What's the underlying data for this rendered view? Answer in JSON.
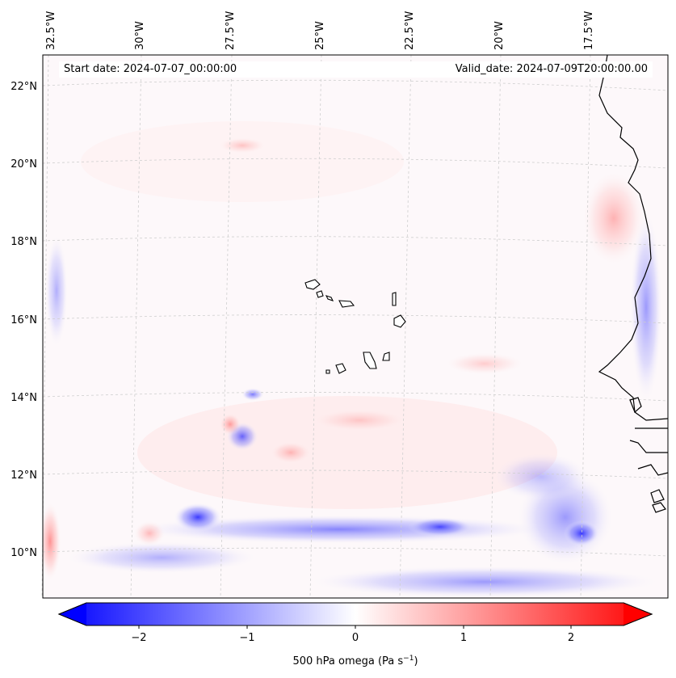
{
  "map": {
    "start_date": "Start date: 2024-07-07_00:00:00",
    "valid_date": "Valid_date: 2024-07-09T20:00:00.00",
    "lon_labels": [
      "32.5°W",
      "30°W",
      "27.5°W",
      "25°W",
      "22.5°W",
      "20°W",
      "17.5°W"
    ],
    "lat_labels": [
      "22°N",
      "20°N",
      "18°N",
      "16°N",
      "14°N",
      "12°N",
      "10°N"
    ]
  },
  "colorbar": {
    "label": "500 hPa omega (Pa s",
    "label_sup": "−1",
    "label_end": ")",
    "ticks": [
      "−2",
      "−1",
      "0",
      "1",
      "2"
    ],
    "range": [
      -2.75,
      2.75
    ],
    "colors": {
      "neg": "#0000ff",
      "zero": "#ffffff",
      "pos": "#ff0000"
    }
  }
}
